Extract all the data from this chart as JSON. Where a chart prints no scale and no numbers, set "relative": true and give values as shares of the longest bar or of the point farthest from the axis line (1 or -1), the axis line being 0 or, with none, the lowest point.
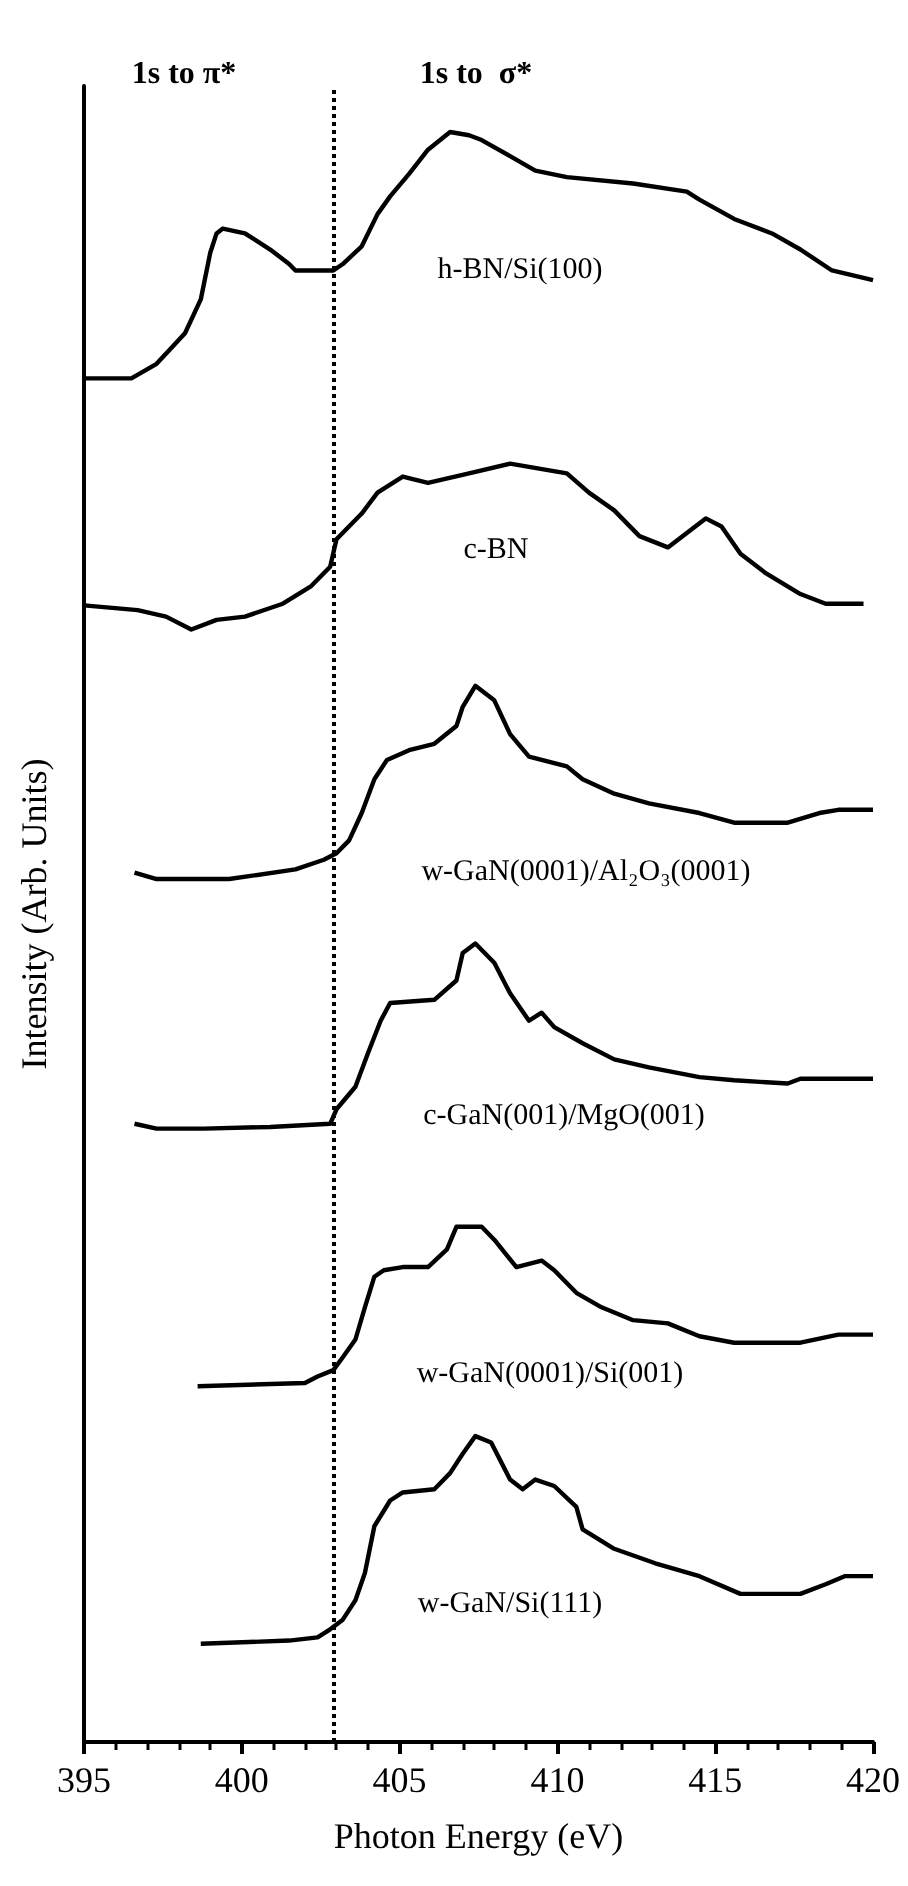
{
  "chart_data": {
    "type": "line",
    "relative": true,
    "xlabel": "Photon Energy (eV)",
    "ylabel": "Intensity (Arb. Units)",
    "xlim": [
      395,
      420
    ],
    "xticks": [
      395,
      400,
      405,
      410,
      415,
      420
    ],
    "tick_labels": "x",
    "marker": "none",
    "annotations": [
      "1s to π*",
      "1s to  σ*"
    ],
    "ref_lines": [
      {
        "axis": "x",
        "value": 402.9,
        "label": null,
        "color": "#000000",
        "line_style": "dotted"
      }
    ],
    "series": [
      {
        "name": "h-BN/Si(100)",
        "color": "#000000",
        "x": [
          395.0,
          396.5,
          397.3,
          398.2,
          398.7,
          399.0,
          399.2,
          399.4,
          400.1,
          400.9,
          401.5,
          401.7,
          402.9,
          403.2,
          403.8,
          404.3,
          404.7,
          405.3,
          405.9,
          406.6,
          407.2,
          407.6,
          408.5,
          409.3,
          410.3,
          412.4,
          414.1,
          414.5,
          415.6,
          416.8,
          417.7,
          418.7,
          420.0
        ],
        "values": [
          0.847,
          0.847,
          0.856,
          0.875,
          0.896,
          0.925,
          0.937,
          0.94,
          0.937,
          0.927,
          0.918,
          0.914,
          0.914,
          0.918,
          0.929,
          0.949,
          0.96,
          0.974,
          0.989,
          1.0,
          0.998,
          0.995,
          0.985,
          0.976,
          0.972,
          0.968,
          0.963,
          0.958,
          0.946,
          0.937,
          0.927,
          0.914,
          0.908
        ]
      },
      {
        "name": "c-BN",
        "color": "#000000",
        "x": [
          395.0,
          396.7,
          397.6,
          398.4,
          399.2,
          400.1,
          401.3,
          402.2,
          402.8,
          403.0,
          403.8,
          404.3,
          405.1,
          405.9,
          407.2,
          408.5,
          410.3,
          411.0,
          411.8,
          412.6,
          413.5,
          414.1,
          414.7,
          415.2,
          415.8,
          416.6,
          417.7,
          418.5,
          419.7
        ],
        "values": [
          0.706,
          0.703,
          0.699,
          0.691,
          0.697,
          0.699,
          0.707,
          0.718,
          0.73,
          0.747,
          0.763,
          0.776,
          0.786,
          0.782,
          0.788,
          0.794,
          0.788,
          0.776,
          0.765,
          0.749,
          0.742,
          0.751,
          0.76,
          0.755,
          0.738,
          0.726,
          0.713,
          0.707,
          0.707
        ]
      },
      {
        "name": "w-GaN(0001)/Al₂O₃(0001)",
        "color": "#000000",
        "x": [
          396.6,
          397.3,
          399.6,
          401.7,
          402.6,
          403.0,
          403.4,
          403.8,
          404.2,
          404.6,
          405.3,
          406.1,
          406.8,
          407.0,
          407.4,
          408.0,
          408.5,
          409.1,
          410.3,
          410.8,
          411.8,
          412.9,
          414.5,
          415.6,
          417.3,
          418.3,
          418.9,
          420.0
        ],
        "values": [
          0.54,
          0.536,
          0.536,
          0.542,
          0.548,
          0.552,
          0.56,
          0.577,
          0.598,
          0.61,
          0.616,
          0.62,
          0.631,
          0.643,
          0.656,
          0.647,
          0.626,
          0.612,
          0.606,
          0.598,
          0.589,
          0.583,
          0.577,
          0.571,
          0.571,
          0.577,
          0.579,
          0.579
        ]
      },
      {
        "name": "c-GaN(001)/MgO(001)",
        "color": "#000000",
        "x": [
          396.6,
          397.3,
          398.8,
          400.9,
          402.8,
          403.0,
          403.6,
          404.0,
          404.4,
          404.7,
          406.1,
          406.8,
          407.0,
          407.4,
          408.0,
          408.5,
          409.1,
          409.5,
          409.9,
          410.8,
          411.8,
          412.9,
          414.5,
          415.6,
          417.3,
          417.7,
          420.0
        ],
        "values": [
          0.384,
          0.381,
          0.381,
          0.382,
          0.384,
          0.393,
          0.407,
          0.428,
          0.448,
          0.459,
          0.461,
          0.473,
          0.49,
          0.496,
          0.484,
          0.465,
          0.448,
          0.453,
          0.444,
          0.434,
          0.424,
          0.419,
          0.413,
          0.411,
          0.409,
          0.412,
          0.412
        ]
      },
      {
        "name": "w-GaN(0001)/Si(001)",
        "color": "#000000",
        "x": [
          398.6,
          402.0,
          402.4,
          402.9,
          403.2,
          403.6,
          403.9,
          404.2,
          404.5,
          405.1,
          405.9,
          406.5,
          406.8,
          407.6,
          408.0,
          408.7,
          409.1,
          409.5,
          409.9,
          410.6,
          411.4,
          412.4,
          413.5,
          414.5,
          415.6,
          417.7,
          418.9,
          420.0
        ],
        "values": [
          0.221,
          0.223,
          0.227,
          0.231,
          0.239,
          0.25,
          0.27,
          0.289,
          0.293,
          0.295,
          0.295,
          0.306,
          0.32,
          0.32,
          0.312,
          0.295,
          0.297,
          0.299,
          0.293,
          0.279,
          0.27,
          0.262,
          0.26,
          0.252,
          0.248,
          0.248,
          0.253,
          0.253
        ]
      },
      {
        "name": "w-GaN/Si(111)",
        "color": "#000000",
        "x": [
          398.7,
          401.5,
          402.4,
          402.8,
          403.2,
          403.6,
          403.9,
          404.2,
          404.7,
          405.1,
          406.1,
          406.6,
          407.0,
          407.4,
          407.9,
          408.5,
          408.9,
          409.3,
          409.9,
          410.6,
          410.8,
          411.8,
          413.1,
          414.5,
          415.8,
          417.7,
          418.5,
          419.1,
          420.0
        ],
        "values": [
          0.061,
          0.063,
          0.065,
          0.07,
          0.076,
          0.088,
          0.105,
          0.134,
          0.15,
          0.155,
          0.157,
          0.167,
          0.179,
          0.19,
          0.186,
          0.163,
          0.157,
          0.163,
          0.159,
          0.146,
          0.132,
          0.12,
          0.111,
          0.103,
          0.092,
          0.092,
          0.098,
          0.103,
          0.103
        ]
      }
    ]
  }
}
